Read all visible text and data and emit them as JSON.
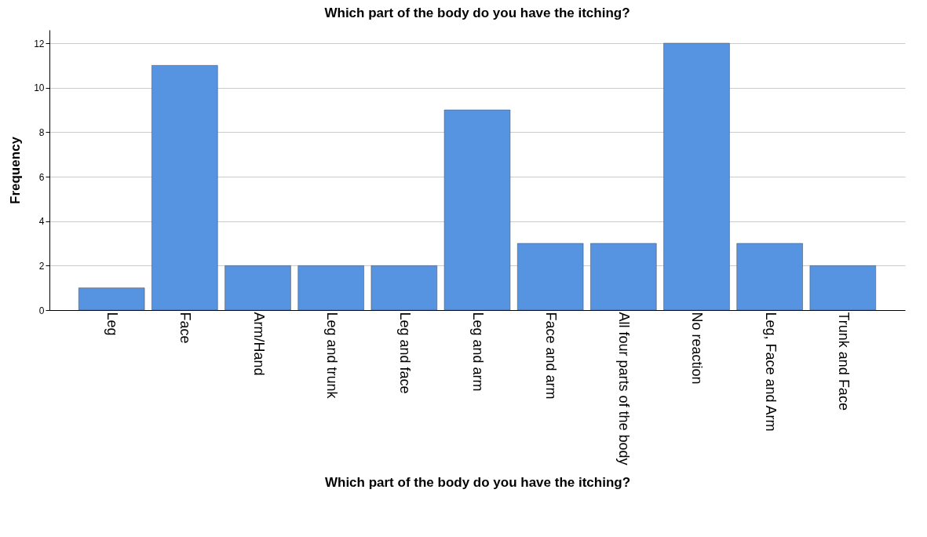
{
  "chart_data": {
    "type": "bar",
    "title": "Which part of the body do you have the itching?",
    "xlabel": "Which part of the body do you have the itching?",
    "ylabel": "Frequency",
    "categories": [
      "Leg",
      "Face",
      "Arm/Hand",
      "Leg and trunk",
      "Leg and face",
      "Leg and arm",
      "Face and arm",
      "All four parts of the body",
      "No reaction",
      "Leg, Face and Arm",
      "Trunk and Face"
    ],
    "values": [
      1,
      11,
      2,
      2,
      2,
      9,
      3,
      3,
      12,
      3,
      2
    ],
    "color": "#5694e2",
    "ylim": [
      0,
      12.6
    ],
    "yticks": [
      0,
      2,
      4,
      6,
      8,
      10,
      12
    ],
    "grid": "y"
  }
}
